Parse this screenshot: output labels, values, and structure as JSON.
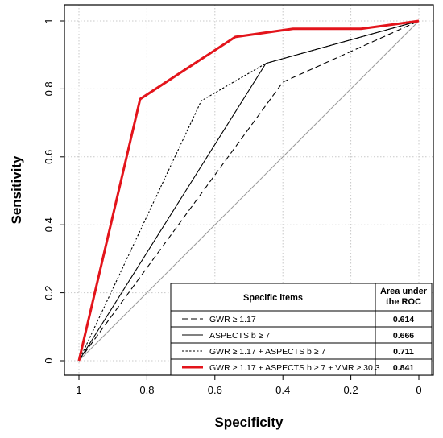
{
  "chart_data": {
    "type": "line",
    "title": "",
    "xlabel": "Specificity",
    "ylabel": "Sensitivity",
    "xlim": [
      1,
      0
    ],
    "ylim": [
      0,
      1
    ],
    "x_ticks": [
      "1",
      "0.8",
      "0.6",
      "0.4",
      "0.2",
      "0"
    ],
    "y_ticks": [
      "0",
      "0.2",
      "0.4",
      "0.6",
      "0.8",
      "1"
    ],
    "grid": true,
    "legend_position": "bottom-right",
    "legend_headers": [
      "Specific items",
      "Area under the ROC"
    ],
    "series": [
      {
        "name": "GWR ≥ 1.17",
        "auc": "0.614",
        "style": "dashed",
        "color": "#000000",
        "x": [
          1,
          0.4,
          0
        ],
        "y": [
          0,
          0.82,
          1
        ]
      },
      {
        "name": "ASPECTS b ≥ 7",
        "auc": "0.666",
        "style": "solid",
        "color": "#000000",
        "x": [
          1,
          0.45,
          0
        ],
        "y": [
          0,
          0.875,
          1
        ]
      },
      {
        "name": "GWR ≥ 1.17 + ASPECTS b ≥ 7",
        "auc": "0.711",
        "style": "dotted",
        "color": "#000000",
        "x": [
          1,
          0.64,
          0.45,
          0
        ],
        "y": [
          0,
          0.765,
          0.875,
          1
        ]
      },
      {
        "name": "GWR ≥ 1.17 + ASPECTS b ≥ 7 + VMR ≥ 30.3",
        "auc": "0.841",
        "style": "solid-thick",
        "color": "#e3141b",
        "x": [
          1,
          0.82,
          0.54,
          0.37,
          0.17,
          0
        ],
        "y": [
          0,
          0.77,
          0.953,
          0.977,
          0.977,
          1
        ]
      }
    ]
  }
}
